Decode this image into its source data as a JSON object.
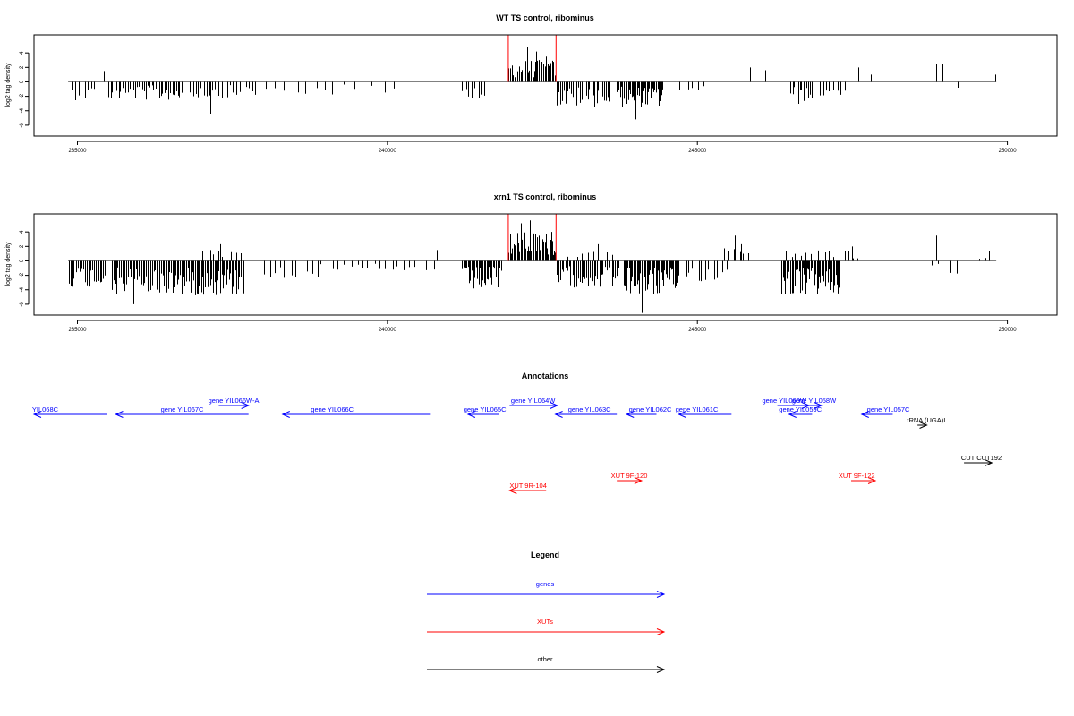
{
  "chart_data": [
    {
      "type": "bar",
      "title": "WT TS control, ribominus",
      "ylabel": "log2 tag density",
      "xlim": [
        234300,
        250800
      ],
      "ylim": [
        -7.5,
        6.5
      ],
      "yticks": [
        -6,
        -4,
        -2,
        0,
        2,
        4
      ],
      "xticks": [
        235000,
        240000,
        245000,
        250000
      ],
      "baseline": {
        "x0": 234850,
        "x1": 249820
      },
      "region_markers": [
        241950,
        242720
      ],
      "colors": {
        "bars": "#000000",
        "baseline": "#808080",
        "markers": "#ff0000"
      },
      "peaks": [
        {
          "x": 235420,
          "y": 1.5
        },
        {
          "x": 237150,
          "y": -4.4
        },
        {
          "x": 237800,
          "y": 1.0
        },
        {
          "x": 242250,
          "y": 4.8
        },
        {
          "x": 242400,
          "y": 4.2
        },
        {
          "x": 242550,
          "y": 3.5
        },
        {
          "x": 244000,
          "y": -5.2
        },
        {
          "x": 245850,
          "y": 2.0
        },
        {
          "x": 246100,
          "y": 1.6
        },
        {
          "x": 247600,
          "y": 2.0
        },
        {
          "x": 247800,
          "y": 1.0
        },
        {
          "x": 248850,
          "y": 2.5
        },
        {
          "x": 248950,
          "y": 2.5
        },
        {
          "x": 249800,
          "y": 1.0
        }
      ],
      "clusters": [
        {
          "x0": 234900,
          "x1": 235300,
          "mean": -1.6,
          "sign": -1,
          "n": 8
        },
        {
          "x0": 235500,
          "x1": 236700,
          "mean": -1.6,
          "sign": -1,
          "n": 40
        },
        {
          "x0": 236800,
          "x1": 237350,
          "mean": -1.4,
          "sign": -1,
          "n": 12
        },
        {
          "x0": 237400,
          "x1": 237900,
          "mean": -1.5,
          "sign": -1,
          "n": 10
        },
        {
          "x0": 238000,
          "x1": 240200,
          "mean": -1.2,
          "sign": -1,
          "n": 14
        },
        {
          "x0": 241200,
          "x1": 241600,
          "mean": -1.4,
          "sign": -1,
          "n": 8
        },
        {
          "x0": 241950,
          "x1": 242720,
          "mean": 1.9,
          "sign": 1,
          "n": 32
        },
        {
          "x0": 242720,
          "x1": 243600,
          "mean": -2.2,
          "sign": -1,
          "n": 30
        },
        {
          "x0": 243700,
          "x1": 244450,
          "mean": -2.2,
          "sign": -1,
          "n": 36
        },
        {
          "x0": 244700,
          "x1": 245200,
          "mean": -0.9,
          "sign": -1,
          "n": 5
        },
        {
          "x0": 246500,
          "x1": 246900,
          "mean": -2.0,
          "sign": -1,
          "n": 14
        },
        {
          "x0": 246950,
          "x1": 247400,
          "mean": -1.3,
          "sign": -1,
          "n": 8
        },
        {
          "x0": 249200,
          "x1": 249250,
          "mean": -1.0,
          "sign": -1,
          "n": 1
        }
      ]
    },
    {
      "type": "bar",
      "title": "xrn1 TS control, ribominus",
      "ylabel": "log2 tag density",
      "xlim": [
        234300,
        250800
      ],
      "ylim": [
        -7.5,
        6.5
      ],
      "yticks": [
        -6,
        -4,
        -2,
        0,
        2,
        4
      ],
      "xticks": [
        235000,
        240000,
        245000,
        250000
      ],
      "baseline": {
        "x0": 234850,
        "x1": 249820
      },
      "region_markers": [
        241950,
        242720
      ],
      "colors": {
        "bars": "#000000",
        "baseline": "#808080",
        "markers": "#ff0000"
      },
      "peaks": [
        {
          "x": 235900,
          "y": -6.0
        },
        {
          "x": 237300,
          "y": 2.3
        },
        {
          "x": 237150,
          "y": 1.5
        },
        {
          "x": 240800,
          "y": 1.5
        },
        {
          "x": 242150,
          "y": 5.2
        },
        {
          "x": 242300,
          "y": 5.6
        },
        {
          "x": 242650,
          "y": 4.0
        },
        {
          "x": 243400,
          "y": 2.3
        },
        {
          "x": 244400,
          "y": 2.3
        },
        {
          "x": 244100,
          "y": -7.2
        },
        {
          "x": 245600,
          "y": 3.5
        },
        {
          "x": 245700,
          "y": 2.3
        },
        {
          "x": 247500,
          "y": 2.0
        },
        {
          "x": 248850,
          "y": 3.5
        },
        {
          "x": 249700,
          "y": 1.3
        }
      ],
      "clusters": [
        {
          "x0": 234850,
          "x1": 235500,
          "mean": -2.3,
          "sign": -1,
          "n": 22
        },
        {
          "x0": 235550,
          "x1": 237700,
          "mean": -3.0,
          "sign": -1,
          "n": 90
        },
        {
          "x0": 237000,
          "x1": 237700,
          "mean": 0.9,
          "sign": 1,
          "n": 9
        },
        {
          "x0": 238000,
          "x1": 239000,
          "mean": -1.5,
          "sign": -1,
          "n": 12
        },
        {
          "x0": 239100,
          "x1": 240800,
          "mean": -1.2,
          "sign": -1,
          "n": 18
        },
        {
          "x0": 241200,
          "x1": 241850,
          "mean": -2.6,
          "sign": -1,
          "n": 30
        },
        {
          "x0": 241950,
          "x1": 242720,
          "mean": 2.5,
          "sign": 1,
          "n": 40
        },
        {
          "x0": 242720,
          "x1": 243750,
          "mean": -2.3,
          "sign": -1,
          "n": 36
        },
        {
          "x0": 242900,
          "x1": 243700,
          "mean": 1.0,
          "sign": 1,
          "n": 8
        },
        {
          "x0": 243800,
          "x1": 244700,
          "mean": -3.0,
          "sign": -1,
          "n": 50
        },
        {
          "x0": 244800,
          "x1": 245500,
          "mean": -1.8,
          "sign": -1,
          "n": 14
        },
        {
          "x0": 245400,
          "x1": 245900,
          "mean": 1.2,
          "sign": 1,
          "n": 6
        },
        {
          "x0": 246350,
          "x1": 247300,
          "mean": -3.0,
          "sign": -1,
          "n": 50
        },
        {
          "x0": 246400,
          "x1": 247650,
          "mean": 1.0,
          "sign": 1,
          "n": 16
        },
        {
          "x0": 248600,
          "x1": 249300,
          "mean": -1.2,
          "sign": -1,
          "n": 5
        },
        {
          "x0": 249500,
          "x1": 249800,
          "mean": 0.8,
          "sign": 1,
          "n": 3
        }
      ]
    }
  ],
  "annotations": {
    "title": "Annotations",
    "xlim": [
      234300,
      250800
    ],
    "colors": {
      "genes": "#0000ff",
      "XUTs": "#ff0000",
      "other": "#000000"
    },
    "features": [
      {
        "label": "YIL068C",
        "type": "genes",
        "strand": "-",
        "start": 234300,
        "end": 235470,
        "row": 2,
        "label_x": 234480
      },
      {
        "label": "gene YIL067C",
        "type": "genes",
        "strand": "-",
        "start": 235620,
        "end": 237760,
        "row": 2,
        "label_x": 236690
      },
      {
        "label": "gene YIL066W-A",
        "type": "genes",
        "strand": "+",
        "start": 237280,
        "end": 237760,
        "row": 1,
        "label_x": 237520
      },
      {
        "label": "gene YIL066C",
        "type": "genes",
        "strand": "-",
        "start": 238310,
        "end": 240700,
        "row": 2,
        "label_x": 239110
      },
      {
        "label": "gene YIL065C",
        "type": "genes",
        "strand": "-",
        "start": 241300,
        "end": 241800,
        "row": 2,
        "label_x": 241570
      },
      {
        "label": "gene YIL064W",
        "type": "genes",
        "strand": "+",
        "start": 241970,
        "end": 242740,
        "row": 1,
        "label_x": 242350
      },
      {
        "label": "gene YIL063C",
        "type": "genes",
        "strand": "-",
        "start": 242710,
        "end": 243700,
        "row": 2,
        "label_x": 243260
      },
      {
        "label": "gene YIL062C",
        "type": "genes",
        "strand": "-",
        "start": 243860,
        "end": 244340,
        "row": 2,
        "label_x": 244240
      },
      {
        "label": "gene YIL061C",
        "type": "genes",
        "strand": "-",
        "start": 244700,
        "end": 245550,
        "row": 2,
        "label_x": 244990
      },
      {
        "label": "gene YIL060W",
        "type": "genes",
        "strand": "+",
        "start": 246290,
        "end": 246800,
        "row": 1,
        "label_x": 246400
      },
      {
        "label": "gene YIL058W",
        "type": "genes",
        "strand": "+",
        "start": 246760,
        "end": 247000,
        "row": 1,
        "label_x": 246880
      },
      {
        "label": "gene YIL059C",
        "type": "genes",
        "strand": "-",
        "start": 246480,
        "end": 246850,
        "row": 2,
        "label_x": 246660
      },
      {
        "label": "gene YIL057C",
        "type": "genes",
        "strand": "-",
        "start": 247650,
        "end": 248150,
        "row": 2,
        "label_x": 248080
      },
      {
        "label": "tRNA (UGA)I",
        "type": "other",
        "strand": "+",
        "start": 248550,
        "end": 248700,
        "row": 3,
        "label_x": 248690
      },
      {
        "label": "CUT CUT192",
        "type": "other",
        "strand": "+",
        "start": 249300,
        "end": 249750,
        "row": 4,
        "label_x": 249580
      },
      {
        "label": "XUT 9R-104",
        "type": "XUTs",
        "strand": "-",
        "start": 241970,
        "end": 242560,
        "row": 6,
        "label_x": 242270
      },
      {
        "label": "XUT 9F-120",
        "type": "XUTs",
        "strand": "+",
        "start": 243700,
        "end": 244100,
        "row": 5,
        "label_x": 243900
      },
      {
        "label": "XUT 9F-122",
        "type": "XUTs",
        "strand": "+",
        "start": 247480,
        "end": 247870,
        "row": 5,
        "label_x": 247570
      }
    ]
  },
  "legend": {
    "title": "Legend",
    "items": [
      {
        "name": "genes",
        "color": "#0000ff"
      },
      {
        "name": "XUTs",
        "color": "#ff0000"
      },
      {
        "name": "other",
        "color": "#000000"
      }
    ]
  }
}
